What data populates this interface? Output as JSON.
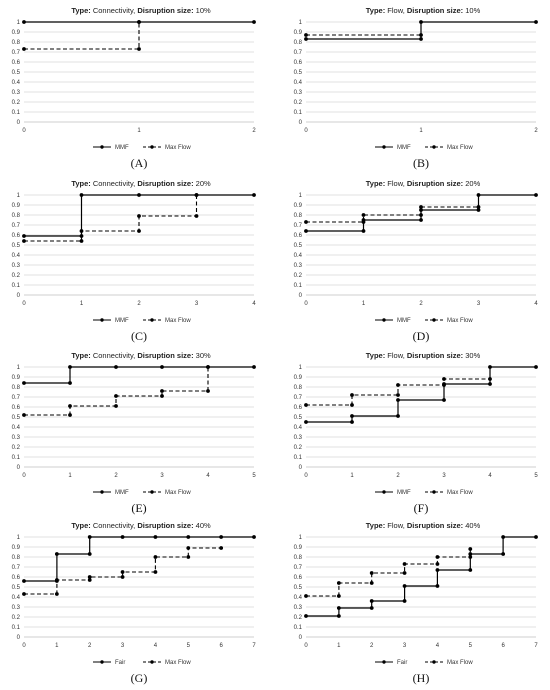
{
  "chart_data": [
    {
      "type": "line",
      "step": true,
      "caption": "(A)",
      "title_prefix": "Type:",
      "title_type": " Connectivity,",
      "title_mid": " Disruption size:",
      "title_size": " 10%",
      "x_ticks": [
        0,
        1,
        2
      ],
      "y_ticks": [
        0,
        0.1,
        0.2,
        0.3,
        0.4,
        0.5,
        0.6,
        0.7,
        0.8,
        0.9,
        1
      ],
      "y_tick_labels": [
        "0",
        "0.1",
        "0.2",
        "0.3",
        "0.4",
        "0.5",
        "0.6",
        "0.7",
        "0.8",
        "0.9",
        "1"
      ],
      "xlim": [
        0,
        2
      ],
      "ylim": [
        0,
        1
      ],
      "grid": true,
      "legend": "bottom-center",
      "series": [
        {
          "name": "MMF",
          "style": "solid",
          "x": [
            0,
            1,
            2
          ],
          "y": [
            1,
            1,
            1
          ]
        },
        {
          "name": "Max Flow",
          "style": "dashed",
          "x": [
            0,
            1
          ],
          "y": [
            0.73,
            1
          ]
        }
      ]
    },
    {
      "type": "line",
      "step": true,
      "caption": "(B)",
      "title_prefix": "Type:",
      "title_type": " Flow,",
      "title_mid": " Disruption size:",
      "title_size": " 10%",
      "x_ticks": [
        0,
        1,
        2
      ],
      "y_ticks": [
        0,
        0.1,
        0.2,
        0.3,
        0.4,
        0.5,
        0.6,
        0.7,
        0.8,
        0.9,
        1
      ],
      "y_tick_labels": [
        "0",
        "0.1",
        "0.2",
        "0.3",
        "0.4",
        "0.5",
        "0.6",
        "0.7",
        "0.8",
        "0.9",
        "1"
      ],
      "xlim": [
        0,
        2
      ],
      "ylim": [
        0,
        1
      ],
      "grid": true,
      "legend": "bottom-center",
      "series": [
        {
          "name": "MMF",
          "style": "solid",
          "x": [
            0,
            1,
            2
          ],
          "y": [
            0.83,
            1,
            1
          ]
        },
        {
          "name": "Max Flow",
          "style": "dashed",
          "x": [
            0,
            1
          ],
          "y": [
            0.87,
            0.87
          ]
        }
      ]
    },
    {
      "type": "line",
      "step": true,
      "caption": "(C)",
      "title_prefix": "Type:",
      "title_type": " Connectivity,",
      "title_mid": " Disruption size:",
      "title_size": " 20%",
      "x_ticks": [
        0,
        1,
        2,
        3,
        4
      ],
      "y_ticks": [
        0,
        0.1,
        0.2,
        0.3,
        0.4,
        0.5,
        0.6,
        0.7,
        0.8,
        0.9,
        1
      ],
      "y_tick_labels": [
        "0",
        "0.1",
        "0.2",
        "0.3",
        "0.4",
        "0.5",
        "0.6",
        "0.7",
        "0.8",
        "0.9",
        "1"
      ],
      "xlim": [
        0,
        4
      ],
      "ylim": [
        0,
        1
      ],
      "grid": true,
      "legend": "bottom-center",
      "series": [
        {
          "name": "MMF",
          "style": "solid",
          "x": [
            0,
            1,
            2,
            3,
            4
          ],
          "y": [
            0.59,
            1,
            1,
            1,
            1
          ]
        },
        {
          "name": "Max Flow",
          "style": "dashed",
          "x": [
            0,
            1,
            2,
            3
          ],
          "y": [
            0.54,
            0.64,
            0.79,
            1
          ]
        }
      ]
    },
    {
      "type": "line",
      "step": true,
      "caption": "(D)",
      "title_prefix": "Type:",
      "title_type": " Flow,",
      "title_mid": " Disruption size:",
      "title_size": " 20%",
      "x_ticks": [
        0,
        1,
        2,
        3,
        4
      ],
      "y_ticks": [
        0,
        0.1,
        0.2,
        0.3,
        0.4,
        0.5,
        0.6,
        0.7,
        0.8,
        0.9,
        1
      ],
      "y_tick_labels": [
        "0",
        "0.1",
        "0.2",
        "0.3",
        "0.4",
        "0.5",
        "0.6",
        "0.7",
        "0.8",
        "0.9",
        "1"
      ],
      "xlim": [
        0,
        4
      ],
      "ylim": [
        0,
        1
      ],
      "grid": true,
      "legend": "bottom-center",
      "series": [
        {
          "name": "MMF",
          "style": "solid",
          "x": [
            0,
            1,
            2,
            3,
            4
          ],
          "y": [
            0.64,
            0.75,
            0.85,
            1,
            1
          ]
        },
        {
          "name": "Max Flow",
          "style": "dashed",
          "x": [
            0,
            1,
            2,
            3
          ],
          "y": [
            0.73,
            0.8,
            0.88,
            0.88
          ]
        }
      ]
    },
    {
      "type": "line",
      "step": true,
      "caption": "(E)",
      "title_prefix": "Type:",
      "title_type": " Connectivity,",
      "title_mid": " Disruption size:",
      "title_size": " 30%",
      "x_ticks": [
        0,
        1,
        2,
        3,
        4,
        5
      ],
      "y_ticks": [
        0,
        0.1,
        0.2,
        0.3,
        0.4,
        0.5,
        0.6,
        0.7,
        0.8,
        0.9,
        1
      ],
      "y_tick_labels": [
        "0",
        "0.1",
        "0.2",
        "0.3",
        "0.4",
        "0.5",
        "0.6",
        "0.7",
        "0.8",
        "0.9",
        "1"
      ],
      "xlim": [
        0,
        5
      ],
      "ylim": [
        0,
        1
      ],
      "grid": true,
      "legend": "bottom-center",
      "series": [
        {
          "name": "MMF",
          "style": "solid",
          "x": [
            0,
            1,
            2,
            3,
            4,
            5
          ],
          "y": [
            0.84,
            1,
            1,
            1,
            1,
            1
          ]
        },
        {
          "name": "Max Flow",
          "style": "dashed",
          "x": [
            0,
            1,
            2,
            3,
            4
          ],
          "y": [
            0.52,
            0.61,
            0.71,
            0.76,
            1
          ]
        }
      ]
    },
    {
      "type": "line",
      "step": true,
      "caption": "(F)",
      "title_prefix": "Type:",
      "title_type": " Flow,",
      "title_mid": " Disruption size:",
      "title_size": " 30%",
      "x_ticks": [
        0,
        1,
        2,
        3,
        4,
        5
      ],
      "y_ticks": [
        0,
        0.1,
        0.2,
        0.3,
        0.4,
        0.5,
        0.6,
        0.7,
        0.8,
        0.9,
        1
      ],
      "y_tick_labels": [
        "0",
        "0.1",
        "0.2",
        "0.3",
        "0.4",
        "0.5",
        "0.6",
        "0.7",
        "0.8",
        "0.9",
        "1"
      ],
      "xlim": [
        0,
        5
      ],
      "ylim": [
        0,
        1
      ],
      "grid": true,
      "legend": "bottom-center",
      "series": [
        {
          "name": "MMF",
          "style": "solid",
          "x": [
            0,
            1,
            2,
            3,
            4,
            5
          ],
          "y": [
            0.45,
            0.51,
            0.67,
            0.83,
            1,
            1
          ]
        },
        {
          "name": "Max Flow",
          "style": "dashed",
          "x": [
            0,
            1,
            2,
            3,
            4
          ],
          "y": [
            0.62,
            0.72,
            0.82,
            0.88,
            0.88
          ]
        }
      ]
    },
    {
      "type": "line",
      "step": true,
      "caption": "(G)",
      "title_prefix": "Type:",
      "title_type": " Connectivity,",
      "title_mid": " Disruption size:",
      "title_size": " 40%",
      "x_ticks": [
        0,
        1,
        2,
        3,
        4,
        5,
        6,
        7
      ],
      "y_ticks": [
        0,
        0.1,
        0.2,
        0.3,
        0.4,
        0.5,
        0.6,
        0.7,
        0.8,
        0.9,
        1
      ],
      "y_tick_labels": [
        "0",
        "0.1",
        "0.2",
        "0.3",
        "0.4",
        "0.5",
        "0.6",
        "0.7",
        "0.8",
        "0.9",
        "1"
      ],
      "xlim": [
        0,
        7
      ],
      "ylim": [
        0,
        1
      ],
      "grid": true,
      "legend": "bottom-center",
      "series": [
        {
          "name": "Fair",
          "style": "solid",
          "x": [
            0,
            1,
            2,
            3,
            4,
            5,
            6,
            7
          ],
          "y": [
            0.56,
            0.83,
            1,
            1,
            1,
            1,
            1,
            1
          ]
        },
        {
          "name": "Max Flow",
          "style": "dashed",
          "x": [
            0,
            1,
            2,
            3,
            4,
            5,
            6
          ],
          "y": [
            0.43,
            0.57,
            0.6,
            0.65,
            0.8,
            0.89,
            0.89
          ]
        }
      ]
    },
    {
      "type": "line",
      "step": true,
      "caption": "(H)",
      "title_prefix": "Type:",
      "title_type": " Flow,",
      "title_mid": " Disruption size:",
      "title_size": " 40%",
      "x_ticks": [
        0,
        1,
        2,
        3,
        4,
        5,
        6,
        7
      ],
      "y_ticks": [
        0,
        0.1,
        0.2,
        0.3,
        0.4,
        0.5,
        0.6,
        0.7,
        0.8,
        0.9,
        1
      ],
      "y_tick_labels": [
        "0",
        "0.1",
        "0.2",
        "0.3",
        "0.4",
        "0.5",
        "0.6",
        "0.7",
        "0.8",
        "0.9",
        "1"
      ],
      "xlim": [
        0,
        7
      ],
      "ylim": [
        0,
        1
      ],
      "grid": true,
      "legend": "bottom-center",
      "series": [
        {
          "name": "Fair",
          "style": "solid",
          "x": [
            0,
            1,
            2,
            3,
            4,
            5,
            6,
            7
          ],
          "y": [
            0.21,
            0.29,
            0.36,
            0.51,
            0.67,
            0.83,
            1,
            1
          ]
        },
        {
          "name": "Max Flow",
          "style": "dashed",
          "x": [
            0,
            1,
            2,
            3,
            4,
            5
          ],
          "y": [
            0.41,
            0.54,
            0.64,
            0.73,
            0.8,
            0.88
          ]
        }
      ]
    }
  ],
  "colors": {
    "line": "#000000",
    "grid": "#d9d9d9",
    "axis": "#bfbfbf"
  }
}
